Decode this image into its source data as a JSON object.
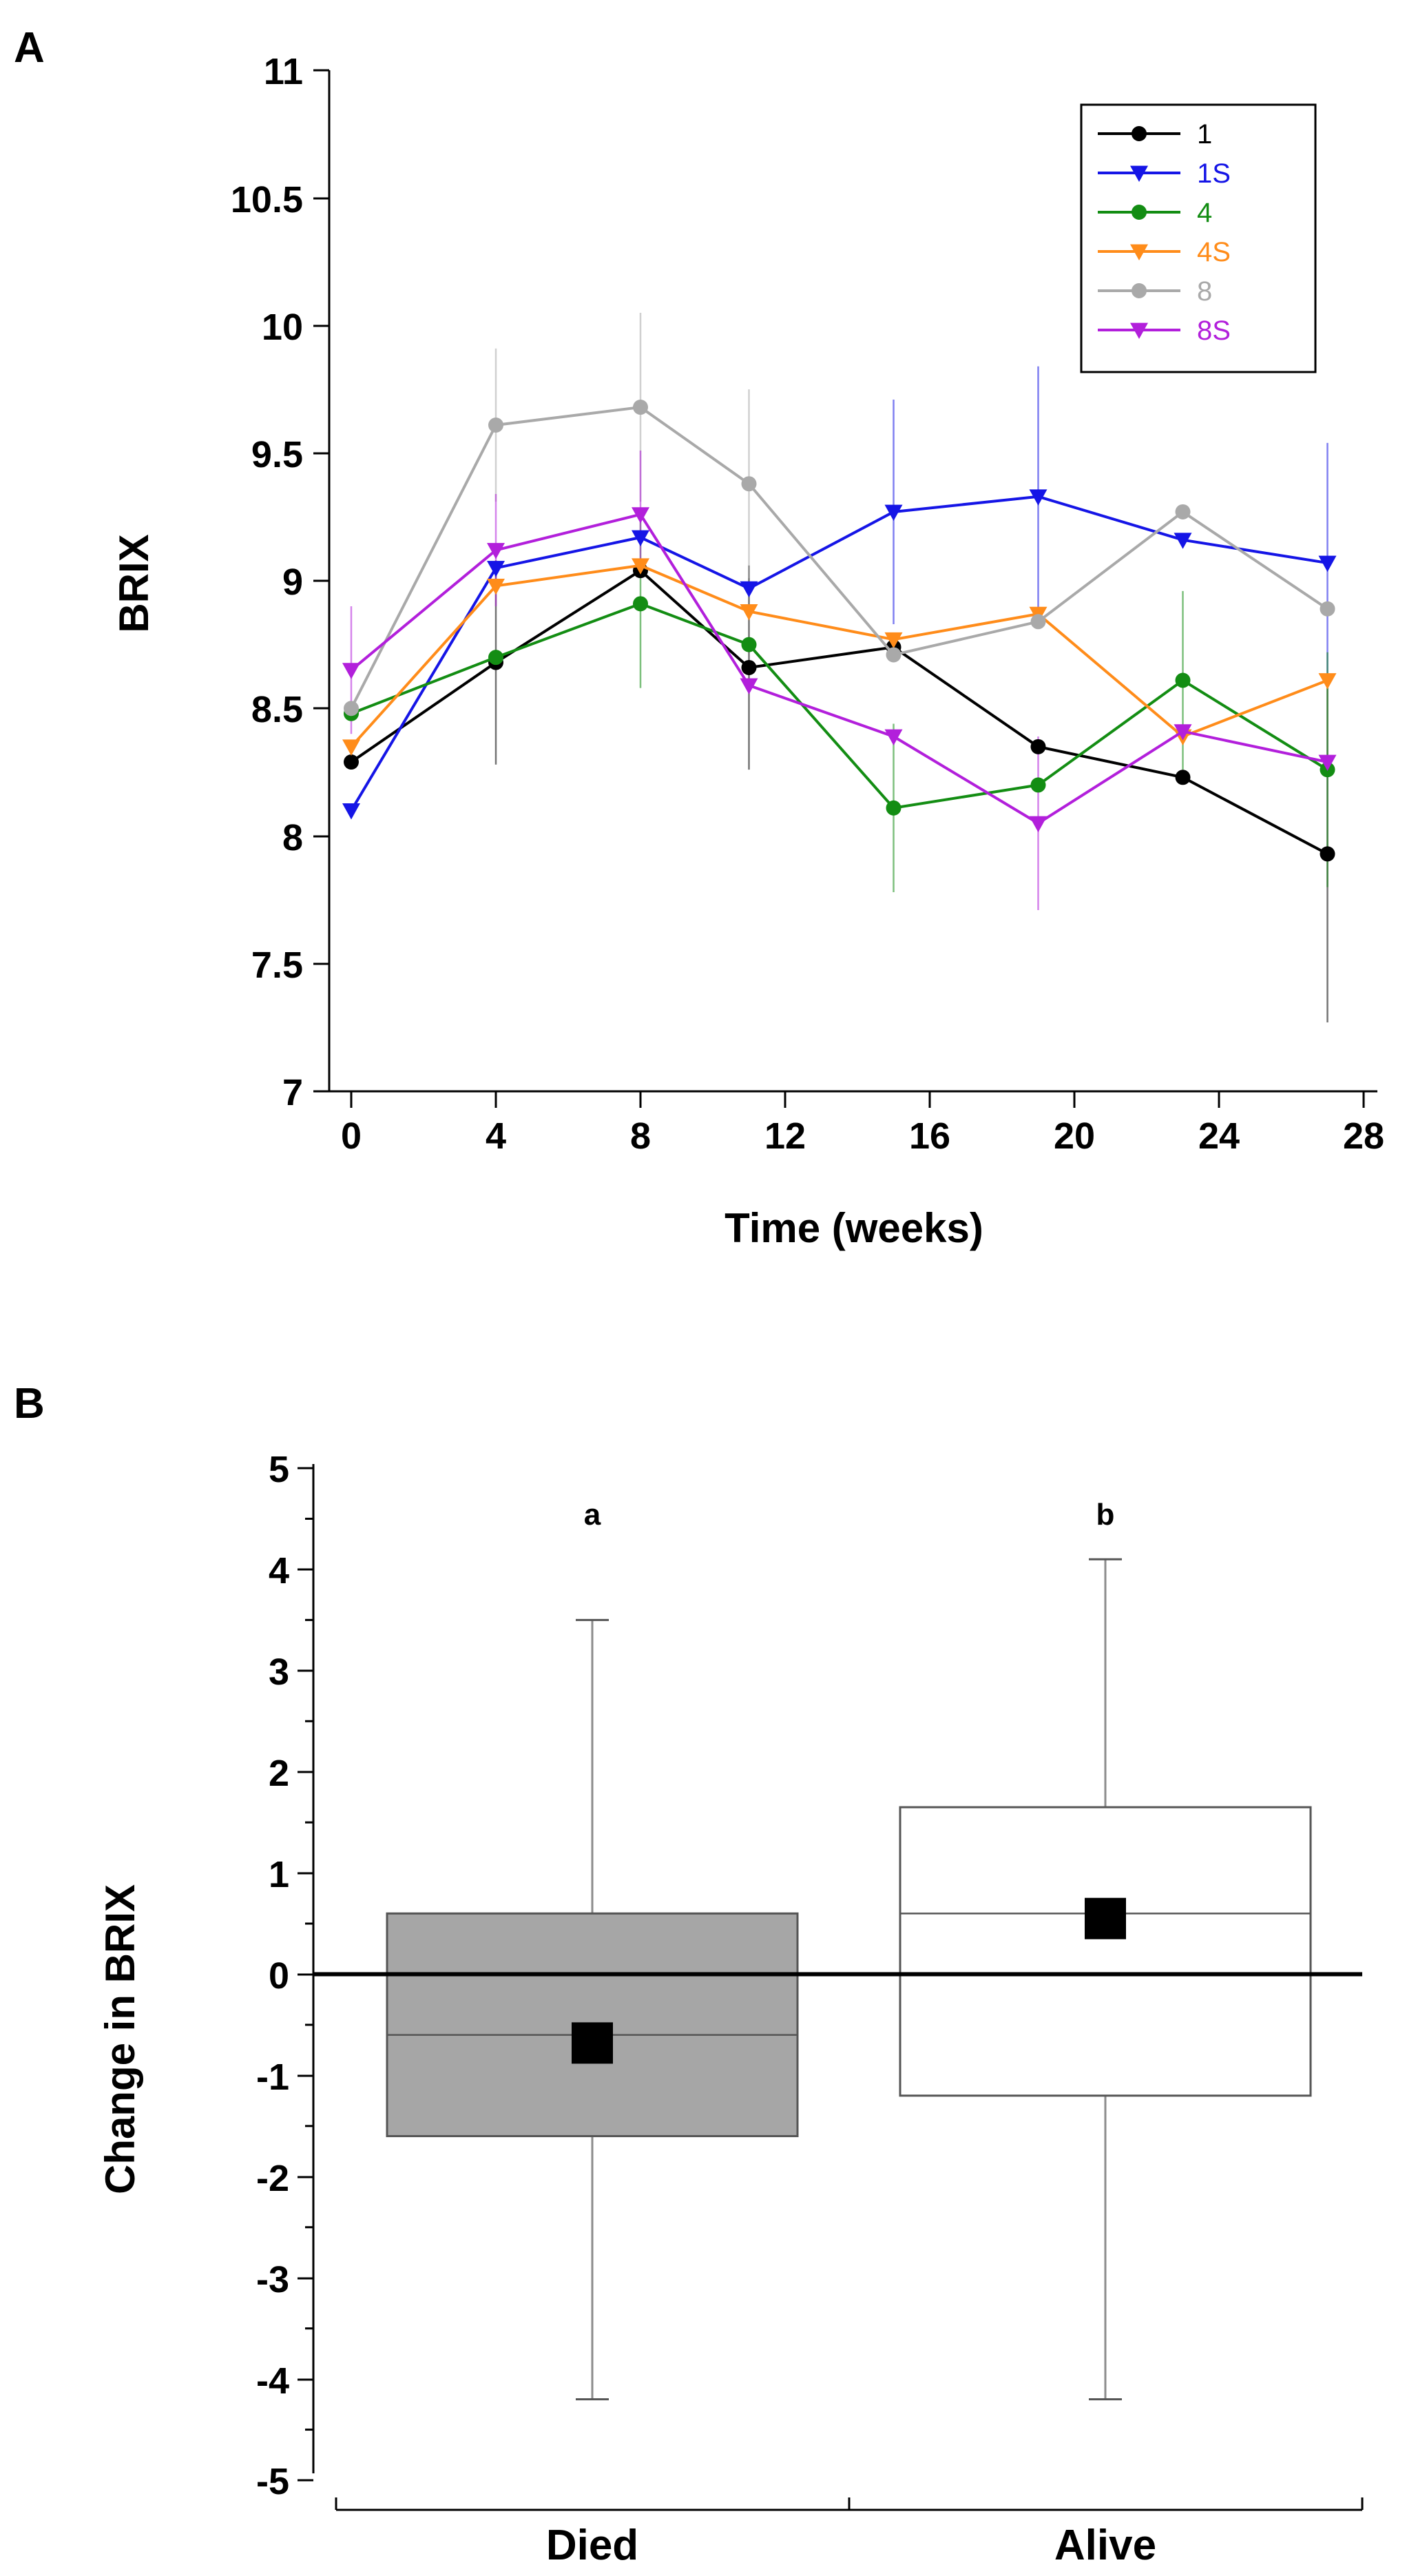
{
  "panels": [
    {
      "label": "A",
      "chart_data": {
        "type": "line",
        "title": "",
        "xlabel": "Time (weeks)",
        "ylabel": "BRIX",
        "xlim": [
          0,
          28
        ],
        "ylim": [
          7,
          11
        ],
        "x_ticks": [
          "0",
          "4",
          "8",
          "12",
          "16",
          "20",
          "24",
          "28"
        ],
        "y_ticks": [
          "7",
          "7.5",
          "8",
          "8.5",
          "9",
          "9.5",
          "10",
          "10.5",
          "11"
        ],
        "legend_position": "top-right",
        "x": [
          0,
          4,
          8,
          11,
          15,
          19,
          23,
          27
        ],
        "series": [
          {
            "name": "1",
            "color": "#000000",
            "marker": "circle",
            "values": [
              8.29,
              8.68,
              9.04,
              8.66,
              8.74,
              8.35,
              8.23,
              7.93
            ],
            "errors": [
              0.0,
              0.4,
              0.0,
              0.4,
              0.0,
              0.0,
              0.0,
              0.66
            ]
          },
          {
            "name": "1S",
            "color": "#1515e6",
            "marker": "triangle",
            "values": [
              8.1,
              9.05,
              9.17,
              8.97,
              9.27,
              9.33,
              9.16,
              9.07
            ],
            "errors": [
              0.0,
              0.0,
              0.0,
              0.0,
              0.44,
              0.51,
              0.0,
              0.47
            ]
          },
          {
            "name": "4",
            "color": "#138d13",
            "marker": "circle",
            "values": [
              8.48,
              8.7,
              8.91,
              8.75,
              8.11,
              8.2,
              8.61,
              8.26
            ],
            "errors": [
              0.0,
              0.0,
              0.33,
              0.0,
              0.33,
              0.0,
              0.35,
              0.46
            ]
          },
          {
            "name": "4S",
            "color": "#ff8c1a",
            "marker": "triangle",
            "values": [
              8.35,
              8.98,
              9.06,
              8.88,
              8.77,
              8.87,
              8.39,
              8.61
            ],
            "errors": [
              0.0,
              0.0,
              0.0,
              0.0,
              0.0,
              0.0,
              0.0,
              0.0
            ]
          },
          {
            "name": "8",
            "color": "#a9a9a9",
            "marker": "circle",
            "values": [
              8.5,
              9.61,
              9.68,
              9.38,
              8.71,
              8.84,
              9.27,
              8.89
            ],
            "errors": [
              0.0,
              0.3,
              0.37,
              0.37,
              0.0,
              0.0,
              0.0,
              0.0
            ]
          },
          {
            "name": "8S",
            "color": "#b21fdb",
            "marker": "triangle",
            "values": [
              8.65,
              9.12,
              9.26,
              8.59,
              8.39,
              8.05,
              8.41,
              8.29
            ],
            "errors": [
              0.25,
              0.22,
              0.25,
              0.0,
              0.0,
              0.34,
              0.0,
              0.0
            ]
          }
        ]
      }
    },
    {
      "label": "B",
      "chart_data": {
        "type": "box",
        "title": "",
        "xlabel": "",
        "ylabel": "Change in BRIX",
        "ylim": [
          -5,
          5
        ],
        "y_ticks": [
          "-5",
          "-4",
          "-3",
          "-2",
          "-1",
          "0",
          "1",
          "2",
          "3",
          "4",
          "5"
        ],
        "reference_line": 0,
        "categories": [
          "Died",
          "Alive"
        ],
        "boxes": [
          {
            "name": "Died",
            "fill": "#a6a6a6",
            "q1": -1.6,
            "median": -0.6,
            "q3": 0.6,
            "whisker_low": -4.2,
            "whisker_high": 3.5,
            "mean": -0.68,
            "significance": "a"
          },
          {
            "name": "Alive",
            "fill": "#ffffff",
            "q1": -1.2,
            "median": 0.6,
            "q3": 1.65,
            "whisker_low": -4.2,
            "whisker_high": 4.1,
            "mean": 0.55,
            "significance": "b"
          }
        ]
      }
    }
  ]
}
